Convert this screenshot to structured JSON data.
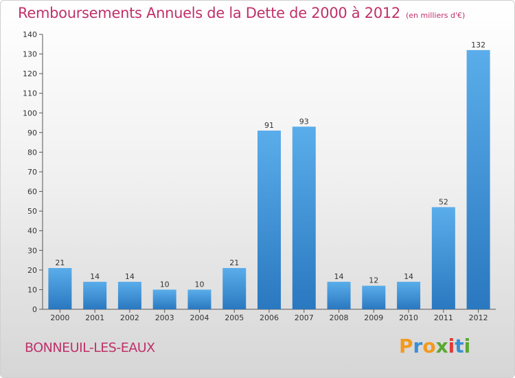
{
  "chart_data": {
    "type": "bar",
    "title": "Remboursements Annuels de la Dette de 2000 à 2012",
    "subtitle": "(en milliers d'€)",
    "categories": [
      "2000",
      "2001",
      "2002",
      "2003",
      "2004",
      "2005",
      "2006",
      "2007",
      "2008",
      "2009",
      "2010",
      "2011",
      "2012"
    ],
    "values": [
      21,
      14,
      14,
      10,
      10,
      21,
      91,
      93,
      14,
      12,
      14,
      52,
      132
    ],
    "ylim": [
      0,
      140
    ],
    "yticks": [
      0,
      10,
      20,
      30,
      40,
      50,
      60,
      70,
      80,
      90,
      100,
      110,
      120,
      130,
      140
    ],
    "grid": false,
    "bar_color": "#3a8fd3",
    "data_labels": true
  },
  "footer": {
    "commune": "BONNEUIL-LES-EAUX",
    "logo_text": "Proxiti",
    "logo_colors": [
      "#f29a1f",
      "#3a8fd3",
      "#f29a1f",
      "#5aa832",
      "#e23a3a",
      "#3a8fd3",
      "#5aa832"
    ]
  },
  "colors": {
    "title": "#c0306a",
    "axis": "#333333"
  }
}
